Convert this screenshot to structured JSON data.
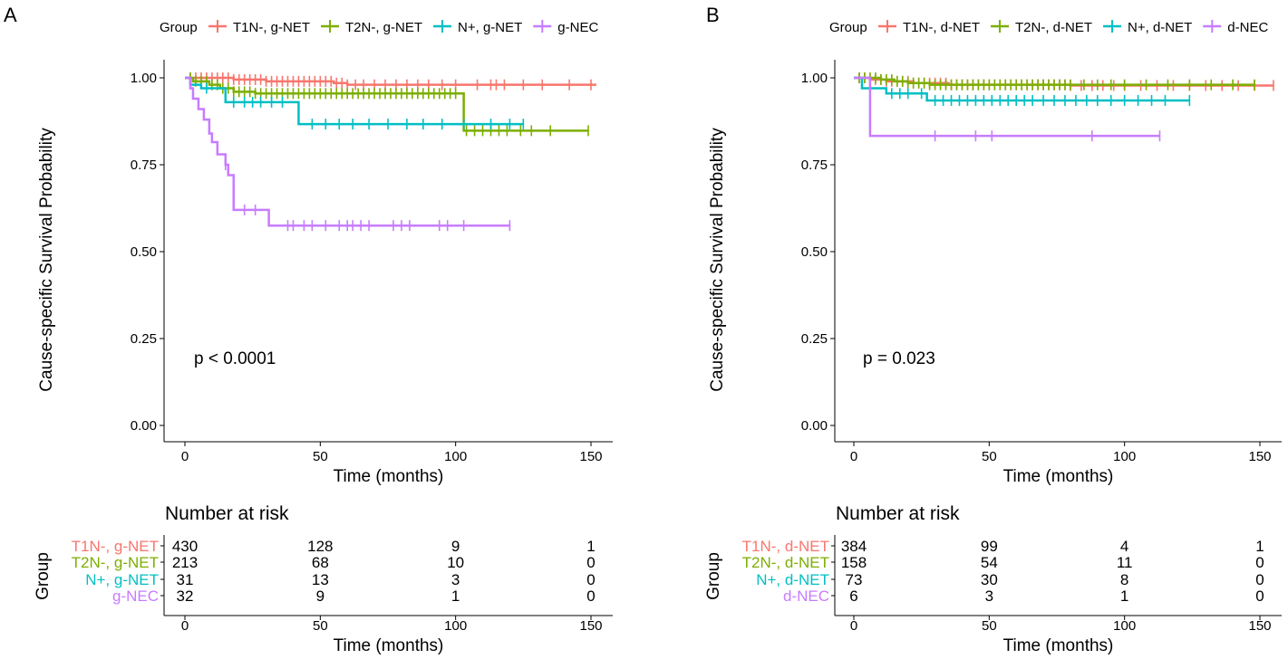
{
  "figure": {
    "x_ticks": [
      0,
      50,
      100,
      150
    ],
    "y_ticks": [
      "0.00",
      "0.25",
      "0.50",
      "0.75",
      "1.00"
    ],
    "colors": {
      "c1": "#F8766D",
      "c2": "#7CAE00",
      "c3": "#00BFC4",
      "c4": "#C77CFF"
    }
  },
  "chart_data": [
    {
      "type": "line",
      "panel_label": "A",
      "legend_title": "Group",
      "legend_position": "top",
      "xlabel": "Time (months)",
      "ylabel": "Cause-specific Survival Probability",
      "xlim": [
        0,
        150
      ],
      "ylim": [
        0,
        1
      ],
      "pvalue": "p < 0.0001",
      "series": [
        {
          "name": "T1N-, g-NET",
          "color": "#F8766D",
          "steps": [
            [
              0,
              1.0
            ],
            [
              18,
              0.995
            ],
            [
              30,
              0.99
            ],
            [
              55,
              0.985
            ],
            [
              60,
              0.98
            ],
            [
              152,
              0.98
            ]
          ],
          "censors": [
            2,
            4,
            6,
            8,
            10,
            12,
            14,
            16,
            18,
            20,
            22,
            24,
            26,
            28,
            30,
            32,
            34,
            36,
            38,
            40,
            42,
            44,
            46,
            48,
            50,
            52,
            54,
            56,
            58,
            60,
            63,
            66,
            70,
            74,
            78,
            82,
            86,
            90,
            95,
            100,
            108,
            113,
            115,
            118,
            125,
            132,
            142,
            150
          ]
        },
        {
          "name": "T2N-, g-NET",
          "color": "#7CAE00",
          "steps": [
            [
              0,
              1.0
            ],
            [
              3,
              0.99
            ],
            [
              9,
              0.98
            ],
            [
              13,
              0.97
            ],
            [
              18,
              0.96
            ],
            [
              26,
              0.955
            ],
            [
              103,
              0.955
            ],
            [
              103,
              0.848
            ],
            [
              149,
              0.848
            ]
          ],
          "censors": [
            2,
            4,
            6,
            8,
            10,
            12,
            14,
            16,
            18,
            20,
            22,
            24,
            26,
            28,
            30,
            32,
            34,
            36,
            38,
            40,
            42,
            44,
            46,
            48,
            50,
            52,
            54,
            56,
            58,
            60,
            62,
            64,
            66,
            68,
            70,
            72,
            74,
            76,
            78,
            80,
            82,
            84,
            86,
            88,
            90,
            92,
            94,
            96,
            98,
            100,
            104,
            107,
            110,
            113,
            116,
            119,
            124,
            128,
            135,
            149
          ]
        },
        {
          "name": "N+, g-NET",
          "color": "#00BFC4",
          "steps": [
            [
              0,
              1.0
            ],
            [
              2,
              0.98
            ],
            [
              6,
              0.97
            ],
            [
              15,
              0.93
            ],
            [
              42,
              0.93
            ],
            [
              42,
              0.867
            ],
            [
              125,
              0.867
            ]
          ],
          "censors": [
            8,
            18,
            22,
            25,
            28,
            32,
            36,
            47,
            52,
            57,
            62,
            68,
            75,
            82,
            88,
            95,
            103,
            113,
            120,
            125
          ]
        },
        {
          "name": "g-NEC",
          "color": "#C77CFF",
          "steps": [
            [
              0,
              1.0
            ],
            [
              2,
              0.97
            ],
            [
              3,
              0.94
            ],
            [
              5,
              0.91
            ],
            [
              7,
              0.88
            ],
            [
              9,
              0.84
            ],
            [
              10,
              0.815
            ],
            [
              12,
              0.78
            ],
            [
              15,
              0.75
            ],
            [
              16,
              0.72
            ],
            [
              18,
              0.62
            ],
            [
              28,
              0.62
            ],
            [
              31,
              0.575
            ],
            [
              120,
              0.575
            ]
          ],
          "censors": [
            15,
            22,
            26,
            38,
            40,
            44,
            47,
            52,
            57,
            60,
            62,
            65,
            68,
            77,
            80,
            83,
            94,
            97,
            103,
            120
          ]
        }
      ],
      "risk_table": {
        "title": "Number at risk",
        "ylabel": "Group",
        "xlabel": "Time (months)",
        "times": [
          0,
          50,
          100,
          150
        ],
        "rows": [
          {
            "name": "T1N-, g-NET",
            "values": [
              "430",
              "128",
              "9",
              "1"
            ]
          },
          {
            "name": "T2N-, g-NET",
            "values": [
              "213",
              "68",
              "10",
              "0"
            ]
          },
          {
            "name": "N+, g-NET",
            "values": [
              "31",
              "13",
              "3",
              "0"
            ]
          },
          {
            "name": "g-NEC",
            "values": [
              "32",
              "9",
              "1",
              "0"
            ]
          }
        ]
      }
    },
    {
      "type": "line",
      "panel_label": "B",
      "legend_title": "Group",
      "legend_position": "top",
      "xlabel": "Time (months)",
      "ylabel": "Cause-specific Survival Probability",
      "xlim": [
        0,
        150
      ],
      "ylim": [
        0,
        1
      ],
      "pvalue": "p = 0.023",
      "series": [
        {
          "name": "T1N-, d-NET",
          "color": "#F8766D",
          "steps": [
            [
              0,
              1.0
            ],
            [
              6,
              0.995
            ],
            [
              12,
              0.99
            ],
            [
              22,
              0.985
            ],
            [
              35,
              0.98
            ],
            [
              80,
              0.978
            ],
            [
              155,
              0.978
            ]
          ],
          "censors": [
            2,
            4,
            6,
            8,
            10,
            12,
            14,
            16,
            18,
            20,
            22,
            24,
            26,
            28,
            30,
            32,
            34,
            36,
            38,
            40,
            42,
            44,
            46,
            48,
            50,
            52,
            54,
            56,
            58,
            60,
            62,
            64,
            66,
            68,
            70,
            72,
            74,
            76,
            78,
            80,
            84,
            88,
            92,
            96,
            100,
            106,
            112,
            118,
            124,
            130,
            136,
            142,
            148,
            155
          ]
        },
        {
          "name": "T2N-, d-NET",
          "color": "#7CAE00",
          "steps": [
            [
              0,
              1.0
            ],
            [
              10,
              0.995
            ],
            [
              15,
              0.99
            ],
            [
              20,
              0.985
            ],
            [
              28,
              0.98
            ],
            [
              148,
              0.98
            ]
          ],
          "censors": [
            2,
            4,
            6,
            8,
            10,
            12,
            14,
            16,
            18,
            20,
            22,
            24,
            26,
            28,
            30,
            32,
            34,
            36,
            38,
            40,
            42,
            44,
            46,
            48,
            50,
            52,
            54,
            56,
            58,
            60,
            62,
            64,
            66,
            68,
            70,
            72,
            74,
            76,
            78,
            80,
            85,
            90,
            95,
            100,
            108,
            116,
            124,
            132,
            140,
            148
          ]
        },
        {
          "name": "N+, d-NET",
          "color": "#00BFC4",
          "steps": [
            [
              0,
              1.0
            ],
            [
              3,
              0.97
            ],
            [
              12,
              0.97
            ],
            [
              12,
              0.955
            ],
            [
              27,
              0.955
            ],
            [
              27,
              0.935
            ],
            [
              124,
              0.935
            ]
          ],
          "censors": [
            14,
            17,
            20,
            25,
            30,
            33,
            36,
            39,
            42,
            45,
            48,
            51,
            54,
            57,
            60,
            63,
            66,
            70,
            74,
            78,
            82,
            86,
            90,
            95,
            100,
            105,
            110,
            115,
            124
          ]
        },
        {
          "name": "d-NEC",
          "color": "#C77CFF",
          "steps": [
            [
              0,
              1.0
            ],
            [
              6,
              1.0
            ],
            [
              6,
              0.833
            ],
            [
              113,
              0.833
            ]
          ],
          "censors": [
            30,
            45,
            51,
            88,
            113
          ]
        }
      ],
      "risk_table": {
        "title": "Number at risk",
        "ylabel": "Group",
        "xlabel": "Time (months)",
        "times": [
          0,
          50,
          100,
          150
        ],
        "rows": [
          {
            "name": "T1N-, d-NET",
            "values": [
              "384",
              "99",
              "4",
              "1"
            ]
          },
          {
            "name": "T2N-, d-NET",
            "values": [
              "158",
              "54",
              "11",
              "0"
            ]
          },
          {
            "name": "N+, d-NET",
            "values": [
              "73",
              "30",
              "8",
              "0"
            ]
          },
          {
            "name": "d-NEC",
            "values": [
              "6",
              "3",
              "1",
              "0"
            ]
          }
        ]
      }
    }
  ]
}
